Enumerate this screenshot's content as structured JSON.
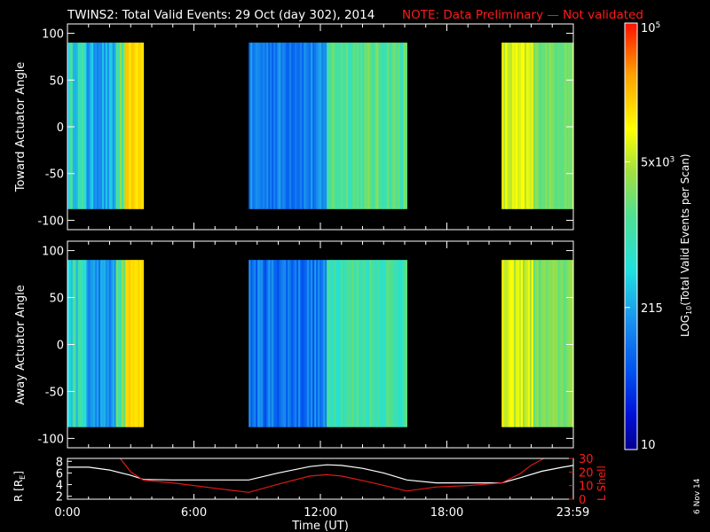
{
  "title": "TWINS2: Total Valid Events: 29 Oct (day 302), 2014",
  "note": "NOTE: Data Preliminary — Not validated",
  "colors": {
    "note": "#ff1a1a",
    "background": "#000000",
    "axis": "#ffffff",
    "lshell": "#e01818",
    "radius": "#ffffff"
  },
  "panels": {
    "toward": {
      "ylabel": "Toward Actuator Angle"
    },
    "away": {
      "ylabel": "Away Actuator Angle"
    }
  },
  "orbit": {
    "ylabel_left": "R [R",
    "ylabel_left_sub": "E",
    "ylabel_left_end": "]",
    "ylabel_right": "L Shell"
  },
  "xaxis": {
    "label": "Time (UT)"
  },
  "colorbar": {
    "label_main": "LOG",
    "label_sub": "10",
    "label_rest": "(Total Valid Events per Scan)",
    "ticks": [
      {
        "value": 10,
        "text": "10"
      },
      {
        "value": 215,
        "text": "215"
      },
      {
        "value": 5000,
        "text": "5x10",
        "sup": "3"
      },
      {
        "value": 100000,
        "text": "10",
        "sup": "5"
      }
    ]
  },
  "datestamp": "6 Nov 14",
  "chart_data": [
    {
      "type": "heatmap",
      "name": "Toward Actuator Angle",
      "xlabel": "Time (UT)",
      "ylabel": "Toward Actuator Angle",
      "xlim": [
        0,
        24
      ],
      "ylim": [
        -110,
        110
      ],
      "yticks": [
        -100,
        -50,
        0,
        50,
        100
      ],
      "data_yrange": [
        -88,
        90
      ],
      "scale": "log10",
      "zlim": [
        10,
        100000
      ],
      "segments": [
        {
          "t0": 0.0,
          "t1": 0.9,
          "level": 0.45,
          "variation": 0.1
        },
        {
          "t0": 0.9,
          "t1": 2.3,
          "level": 0.33,
          "variation": 0.07
        },
        {
          "t0": 2.3,
          "t1": 2.75,
          "level": 0.55,
          "variation": 0.1
        },
        {
          "t0": 2.75,
          "t1": 3.6,
          "level": 0.8,
          "variation": 0.03
        },
        {
          "t0": 8.6,
          "t1": 12.3,
          "level": 0.27,
          "variation": 0.07
        },
        {
          "t0": 12.3,
          "t1": 16.1,
          "level": 0.55,
          "variation": 0.08
        },
        {
          "t0": 20.6,
          "t1": 22.1,
          "level": 0.7,
          "variation": 0.06
        },
        {
          "t0": 22.1,
          "t1": 24.0,
          "level": 0.6,
          "variation": 0.05
        }
      ]
    },
    {
      "type": "heatmap",
      "name": "Away Actuator Angle",
      "xlabel": "Time (UT)",
      "ylabel": "Away Actuator Angle",
      "xlim": [
        0,
        24
      ],
      "ylim": [
        -110,
        110
      ],
      "yticks": [
        -100,
        -50,
        0,
        50,
        100
      ],
      "data_yrange": [
        -88,
        90
      ],
      "scale": "log10",
      "zlim": [
        10,
        100000
      ],
      "segments": [
        {
          "t0": 0.0,
          "t1": 0.9,
          "level": 0.45,
          "variation": 0.1
        },
        {
          "t0": 0.9,
          "t1": 2.3,
          "level": 0.3,
          "variation": 0.07
        },
        {
          "t0": 2.3,
          "t1": 2.75,
          "level": 0.55,
          "variation": 0.1
        },
        {
          "t0": 2.75,
          "t1": 3.6,
          "level": 0.8,
          "variation": 0.03
        },
        {
          "t0": 8.6,
          "t1": 12.3,
          "level": 0.25,
          "variation": 0.08
        },
        {
          "t0": 12.3,
          "t1": 16.1,
          "level": 0.52,
          "variation": 0.08
        },
        {
          "t0": 20.6,
          "t1": 22.1,
          "level": 0.7,
          "variation": 0.06
        },
        {
          "t0": 22.1,
          "t1": 24.0,
          "level": 0.6,
          "variation": 0.05
        }
      ]
    },
    {
      "type": "line",
      "name": "Orbit",
      "xlabel": "Time (UT)",
      "xticks": [
        "0:00",
        "6:00",
        "12:00",
        "18:00",
        "23:59"
      ],
      "xtick_values": [
        0,
        6,
        12,
        18,
        23.98
      ],
      "xlim": [
        0,
        24
      ],
      "ylim_left": [
        1.5,
        8.5
      ],
      "yticks_left": [
        2,
        4,
        6,
        8
      ],
      "ylim_right": [
        0,
        30
      ],
      "yticks_right": [
        0,
        10,
        20,
        30
      ],
      "series": [
        {
          "name": "R [RE]",
          "axis": "left",
          "x": [
            0,
            1,
            2,
            3,
            3.6,
            5,
            7,
            8.6,
            10,
            11.5,
            12.3,
            13,
            14,
            15,
            16.1,
            17.5,
            19,
            20.6,
            21.5,
            22.5,
            23.5,
            24
          ],
          "y": [
            7.0,
            7.0,
            6.5,
            5.6,
            4.9,
            4.8,
            4.8,
            4.8,
            6.0,
            7.1,
            7.4,
            7.3,
            6.8,
            6.0,
            4.8,
            4.3,
            4.3,
            4.3,
            5.2,
            6.3,
            7.0,
            7.3
          ]
        },
        {
          "name": "L Shell",
          "axis": "right",
          "x": [
            2.5,
            3.0,
            3.6,
            5.0,
            7.0,
            8.6,
            10.0,
            11.5,
            12.3,
            13.0,
            14.5,
            16.1,
            17.5,
            19.0,
            20.6,
            21.5,
            22.0,
            22.6
          ],
          "y": [
            30,
            20,
            14,
            12,
            8,
            5,
            11,
            17,
            18,
            17,
            12,
            6,
            9,
            10,
            12,
            19,
            25,
            30
          ]
        }
      ]
    }
  ]
}
